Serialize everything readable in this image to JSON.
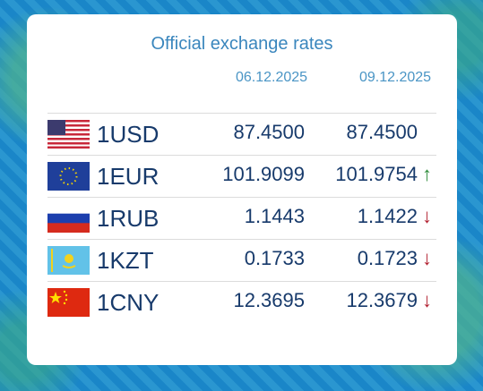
{
  "header": {
    "title": "Official exchange rates",
    "dates": [
      "06.12.2025",
      "09.12.2025"
    ]
  },
  "rows": [
    {
      "currency": "1USD",
      "rates": [
        "87.4500",
        "87.4500"
      ]
    },
    {
      "currency": "1EUR",
      "rates": [
        "101.9099",
        "101.9754"
      ],
      "trend": "↑"
    },
    {
      "currency": "1RUB",
      "rates": [
        "1.1443",
        "1.1422"
      ],
      "trend": "↓"
    },
    {
      "currency": "1KZT",
      "rates": [
        "0.1733",
        "0.1723"
      ],
      "trend": "↓"
    },
    {
      "currency": "1CNY",
      "rates": [
        "12.3695",
        "12.3679"
      ],
      "trend": "↓"
    }
  ]
}
